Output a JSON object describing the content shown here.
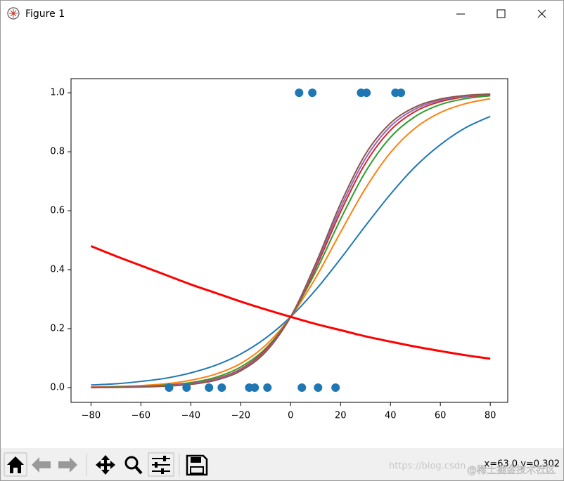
{
  "window": {
    "title": "Figure 1"
  },
  "chart_data": {
    "type": "line",
    "x": [
      -80,
      -70,
      -60,
      -50,
      -40,
      -30,
      -20,
      -10,
      0,
      10,
      20,
      30,
      40,
      50,
      60,
      70,
      80
    ],
    "series": [
      {
        "color": "#1f77b4",
        "values": [
          0.009,
          0.013,
          0.021,
          0.032,
          0.05,
          0.076,
          0.114,
          0.168,
          0.24,
          0.331,
          0.437,
          0.549,
          0.656,
          0.75,
          0.824,
          0.881,
          0.92
        ]
      },
      {
        "color": "#ff7f0e",
        "values": [
          0.002,
          0.004,
          0.007,
          0.013,
          0.025,
          0.046,
          0.082,
          0.144,
          0.24,
          0.372,
          0.527,
          0.676,
          0.797,
          0.881,
          0.933,
          0.963,
          0.98
        ]
      },
      {
        "color": "#2ca02c",
        "values": [
          0.001,
          0.002,
          0.004,
          0.009,
          0.017,
          0.035,
          0.07,
          0.133,
          0.24,
          0.393,
          0.571,
          0.732,
          0.849,
          0.92,
          0.96,
          0.98,
          0.99
        ]
      },
      {
        "color": "#d62728",
        "values": [
          0.001,
          0.001,
          0.003,
          0.007,
          0.014,
          0.03,
          0.063,
          0.128,
          0.24,
          0.405,
          0.596,
          0.761,
          0.873,
          0.937,
          0.97,
          0.986,
          0.993
        ]
      },
      {
        "color": "#9467bd",
        "values": [
          0.001,
          0.001,
          0.003,
          0.006,
          0.013,
          0.028,
          0.06,
          0.124,
          0.24,
          0.413,
          0.61,
          0.777,
          0.886,
          0.945,
          0.975,
          0.988,
          0.995
        ]
      },
      {
        "color": "#8c564b",
        "values": [
          0.0,
          0.001,
          0.002,
          0.005,
          0.011,
          0.025,
          0.057,
          0.121,
          0.24,
          0.42,
          0.624,
          0.792,
          0.897,
          0.952,
          0.979,
          0.991,
          0.996
        ]
      },
      {
        "color": "#ff0000",
        "linewidth": 3,
        "values": [
          0.48,
          0.446,
          0.414,
          0.382,
          0.35,
          0.321,
          0.292,
          0.265,
          0.24,
          0.216,
          0.195,
          0.174,
          0.156,
          0.139,
          0.124,
          0.11,
          0.098
        ]
      }
    ],
    "points": {
      "color": "#1f77b4",
      "x": [
        3.4,
        8.7,
        28.2,
        30.4,
        42.0,
        44.2,
        -48.7,
        -41.7,
        -32.7,
        -27.6,
        -16.6,
        -14.4,
        -9.3,
        4.5,
        11.0,
        18.0
      ],
      "values": [
        1,
        1,
        1,
        1,
        1,
        1,
        0,
        0,
        0,
        0,
        0,
        0,
        0,
        0,
        0,
        0
      ]
    },
    "xlim": [
      -88,
      87
    ],
    "ylim": [
      -0.05,
      1.048
    ],
    "xticks": [
      {
        "value": -80,
        "label": "−80"
      },
      {
        "value": -60,
        "label": "−60"
      },
      {
        "value": -40,
        "label": "−40"
      },
      {
        "value": -20,
        "label": "−20"
      },
      0,
      20,
      40,
      60,
      80
    ],
    "yticks": [
      {
        "value": 0,
        "label": "0.0"
      },
      {
        "value": 0.2,
        "label": "0.2"
      },
      {
        "value": 0.4,
        "label": "0.4"
      },
      {
        "value": 0.6,
        "label": "0.6"
      },
      {
        "value": 0.8,
        "label": "0.8"
      },
      {
        "value": 1,
        "label": "1.0"
      }
    ]
  },
  "toolbar": {
    "status": "x=63.0 y=0.302",
    "watermark": "https://blog.csdn",
    "watermark2": "@稀土掘金技术社区"
  }
}
